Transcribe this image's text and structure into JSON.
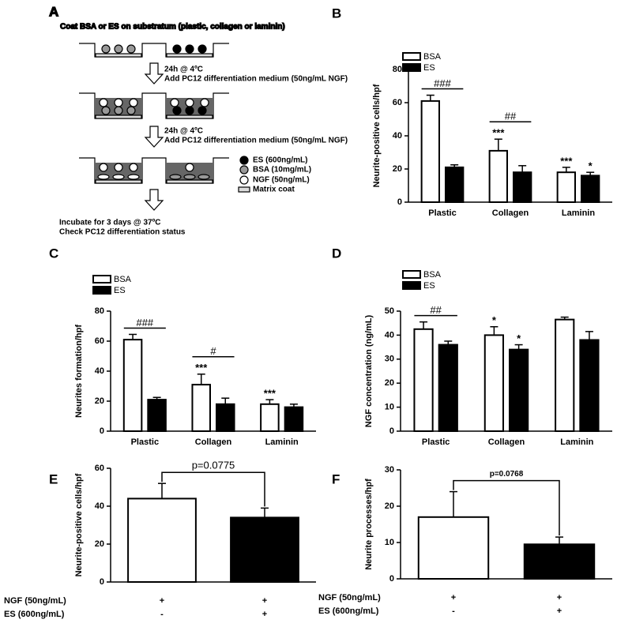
{
  "diagram": {
    "panel": "A",
    "title": "Coat BSA or ES on substratum (plastic, collagen or laminin)",
    "steps": [
      [
        "24h @ 4ºC",
        "Add PC12 differentiation medium (50ng/mL NGF)"
      ],
      [
        "24h @ 4ºC",
        "Add PC12 differentiation medium (50ng/mL NGF)"
      ]
    ],
    "legend": [
      "ES (600ng/mL)",
      "BSA (10mg/mL)",
      "NGF (50ng/mL)",
      "Matrix coat"
    ],
    "final": [
      "Incubate for 3 days @ 37ºC",
      "Check PC12 differentiation status"
    ]
  },
  "chart_data": [
    {
      "panel": "B",
      "type": "grouped-bar",
      "ylabel": "Neurite-positive cells/hpf",
      "categories": [
        "Plastic",
        "Collagen",
        "Laminin"
      ],
      "series": [
        {
          "name": "BSA",
          "color": "#ffffff",
          "values": [
            61,
            31,
            18
          ],
          "errors": [
            3.5,
            7,
            3
          ],
          "labels": [
            null,
            "***",
            "***"
          ]
        },
        {
          "name": "ES",
          "color": "#000000",
          "values": [
            21,
            18,
            16
          ],
          "errors": [
            1.5,
            4,
            2
          ],
          "labels": [
            null,
            null,
            "*"
          ]
        }
      ],
      "comparisons": [
        "###",
        "##",
        null
      ],
      "ylim": [
        0,
        80
      ],
      "yticks": [
        0,
        20,
        40,
        60,
        80
      ]
    },
    {
      "panel": "C",
      "type": "grouped-bar",
      "ylabel": "Neurites formation/hpf",
      "categories": [
        "Plastic",
        "Collagen",
        "Laminin"
      ],
      "series": [
        {
          "name": "BSA",
          "color": "#ffffff",
          "values": [
            61,
            31,
            18
          ],
          "errors": [
            3.5,
            7,
            3
          ],
          "labels": [
            null,
            "***",
            "***"
          ]
        },
        {
          "name": "ES",
          "color": "#000000",
          "values": [
            21,
            18,
            16
          ],
          "errors": [
            1.5,
            4,
            2
          ],
          "labels": [
            null,
            null,
            null
          ]
        }
      ],
      "comparisons": [
        "###",
        "#",
        null
      ],
      "ylim": [
        0,
        80
      ],
      "yticks": [
        0,
        20,
        40,
        60,
        80
      ]
    },
    {
      "panel": "D",
      "type": "grouped-bar",
      "ylabel": "NGF concentration (ng/mL)",
      "categories": [
        "Plastic",
        "Collagen",
        "Laminin"
      ],
      "series": [
        {
          "name": "BSA",
          "color": "#ffffff",
          "values": [
            42.5,
            40,
            46.5
          ],
          "errors": [
            3,
            3.5,
            1
          ],
          "labels": [
            null,
            "*",
            null
          ]
        },
        {
          "name": "ES",
          "color": "#000000",
          "values": [
            36,
            34,
            38
          ],
          "errors": [
            1.5,
            2,
            3.5
          ],
          "labels": [
            null,
            "*",
            null
          ]
        }
      ],
      "comparisons": [
        "##",
        null,
        null
      ],
      "ylim": [
        0,
        50
      ],
      "yticks": [
        0,
        10,
        20,
        30,
        40,
        50
      ]
    },
    {
      "panel": "E",
      "type": "bar",
      "ylabel": "Neurite-positive cells/hpf",
      "values": [
        44,
        34
      ],
      "errors": [
        8,
        5
      ],
      "colors": [
        "#ffffff",
        "#000000"
      ],
      "comparison": "p=0.0775",
      "conditions": [
        {
          "name": "NGF (50ng/mL)",
          "values": [
            "+",
            "+"
          ]
        },
        {
          "name": "ES (600ng/mL)",
          "values": [
            "-",
            "+"
          ]
        }
      ],
      "ylim": [
        0,
        60
      ],
      "yticks": [
        0,
        20,
        40,
        60
      ]
    },
    {
      "panel": "F",
      "type": "bar",
      "ylabel": "Neurite processes/hpf",
      "values": [
        17,
        9.5
      ],
      "errors": [
        7,
        2
      ],
      "colors": [
        "#ffffff",
        "#000000"
      ],
      "comparison": "p=0.0768",
      "conditions": [
        {
          "name": "NGF (50ng/mL)",
          "values": [
            "+",
            "+"
          ]
        },
        {
          "name": "ES (600ng/mL)",
          "values": [
            "-",
            "+"
          ]
        }
      ],
      "ylim": [
        0,
        30
      ],
      "yticks": [
        0,
        10,
        20,
        30
      ]
    }
  ]
}
